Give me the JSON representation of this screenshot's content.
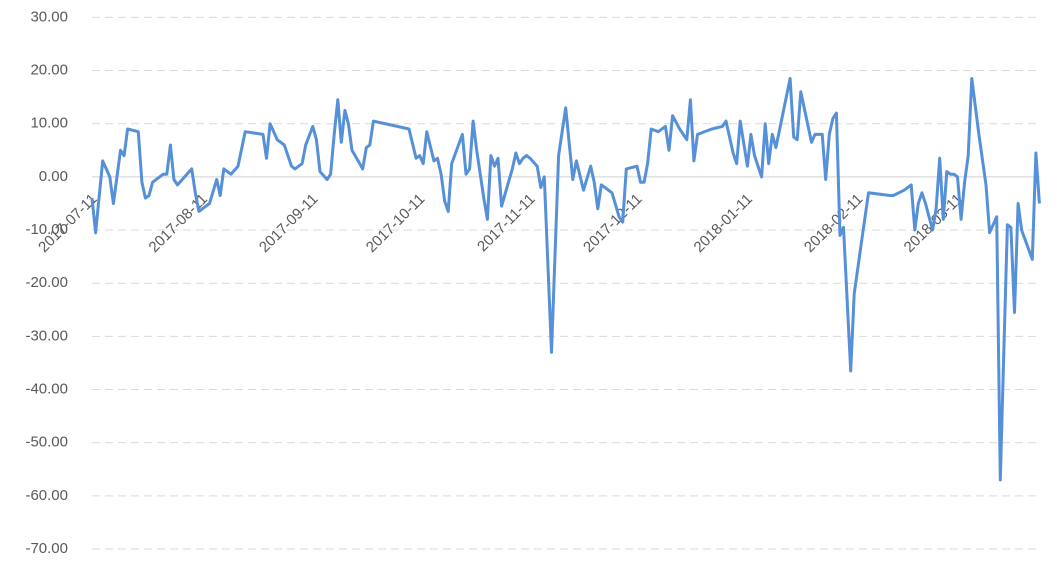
{
  "chart_data": {
    "type": "line",
    "x": [
      "2017-07-11",
      "2017-07-12",
      "2017-07-14",
      "2017-07-16",
      "2017-07-17",
      "2017-07-19",
      "2017-07-20",
      "2017-07-21",
      "2017-07-24",
      "2017-07-25",
      "2017-07-26",
      "2017-07-27",
      "2017-07-28",
      "2017-07-31",
      "2017-08-01",
      "2017-08-02",
      "2017-08-03",
      "2017-08-04",
      "2017-08-08",
      "2017-08-09",
      "2017-08-10",
      "2017-08-13",
      "2017-08-15",
      "2017-08-16",
      "2017-08-17",
      "2017-08-19",
      "2017-08-21",
      "2017-08-23",
      "2017-08-28",
      "2017-08-29",
      "2017-08-30",
      "2017-09-01",
      "2017-09-03",
      "2017-09-05",
      "2017-09-06",
      "2017-09-08",
      "2017-09-09",
      "2017-09-11",
      "2017-09-12",
      "2017-09-13",
      "2017-09-15",
      "2017-09-16",
      "2017-09-17",
      "2017-09-18",
      "2017-09-19",
      "2017-09-20",
      "2017-09-21",
      "2017-09-22",
      "2017-09-25",
      "2017-09-26",
      "2017-09-27",
      "2017-09-28",
      "2017-10-08",
      "2017-10-10",
      "2017-10-11",
      "2017-10-12",
      "2017-10-13",
      "2017-10-15",
      "2017-10-16",
      "2017-10-17",
      "2017-10-18",
      "2017-10-19",
      "2017-10-20",
      "2017-10-23",
      "2017-10-24",
      "2017-10-25",
      "2017-10-26",
      "2017-10-27",
      "2017-10-29",
      "2017-10-30",
      "2017-10-31",
      "2017-11-01",
      "2017-11-02",
      "2017-11-03",
      "2017-11-06",
      "2017-11-07",
      "2017-11-08",
      "2017-11-09",
      "2017-11-10",
      "2017-11-11",
      "2017-11-13",
      "2017-11-14",
      "2017-11-15",
      "2017-11-17",
      "2017-11-19",
      "2017-11-21",
      "2017-11-23",
      "2017-11-24",
      "2017-11-26",
      "2017-11-28",
      "2017-11-29",
      "2017-11-30",
      "2017-12-01",
      "2017-12-02",
      "2017-12-04",
      "2017-12-06",
      "2017-12-07",
      "2017-12-08",
      "2017-12-11",
      "2017-12-12",
      "2017-12-13",
      "2017-12-14",
      "2017-12-15",
      "2017-12-17",
      "2017-12-19",
      "2017-12-20",
      "2017-12-21",
      "2017-12-23",
      "2017-12-25",
      "2017-12-26",
      "2017-12-27",
      "2017-12-28",
      "2018-01-01",
      "2018-01-04",
      "2018-01-05",
      "2018-01-07",
      "2018-01-08",
      "2018-01-09",
      "2018-01-11",
      "2018-01-12",
      "2018-01-13",
      "2018-01-15",
      "2018-01-16",
      "2018-01-17",
      "2018-01-18",
      "2018-01-19",
      "2018-01-21",
      "2018-01-23",
      "2018-01-24",
      "2018-01-25",
      "2018-01-26",
      "2018-01-29",
      "2018-01-30",
      "2018-02-01",
      "2018-02-02",
      "2018-02-03",
      "2018-02-04",
      "2018-02-05",
      "2018-02-06",
      "2018-02-07",
      "2018-02-09",
      "2018-02-10",
      "2018-02-12",
      "2018-02-14",
      "2018-02-20",
      "2018-02-21",
      "2018-02-24",
      "2018-02-26",
      "2018-02-27",
      "2018-02-28",
      "2018-03-01",
      "2018-03-02",
      "2018-03-04",
      "2018-03-05",
      "2018-03-06",
      "2018-03-07",
      "2018-03-08",
      "2018-03-09",
      "2018-03-10",
      "2018-03-11",
      "2018-03-12",
      "2018-03-13",
      "2018-03-14",
      "2018-03-15",
      "2018-03-17",
      "2018-03-19",
      "2018-03-20",
      "2018-03-22",
      "2018-03-23",
      "2018-03-24",
      "2018-03-25",
      "2018-03-26",
      "2018-03-27",
      "2018-03-28",
      "2018-03-29",
      "2018-04-01",
      "2018-04-02",
      "2018-04-03"
    ],
    "series": [
      {
        "color": "#5590d9",
        "values": [
          -4,
          -10.5,
          3,
          0,
          -5,
          5,
          4,
          9,
          8.5,
          -1,
          -4,
          -3.5,
          -1,
          0.5,
          0.5,
          6,
          -0.5,
          -1.5,
          1.5,
          -3,
          -6.5,
          -5,
          -0.5,
          -3.5,
          1.5,
          0.5,
          2,
          8.5,
          8,
          3.5,
          10,
          7,
          6,
          2,
          1.5,
          2.5,
          6,
          9.5,
          7,
          1,
          -0.5,
          0.5,
          8,
          14.5,
          6.5,
          12.5,
          10,
          5,
          1.5,
          5.5,
          6,
          10.5,
          9,
          3.5,
          4,
          2.5,
          8.5,
          3,
          3.5,
          0.5,
          -4.5,
          -6.5,
          2.5,
          8,
          0.5,
          1.5,
          10.5,
          5,
          -4,
          -8,
          4,
          2,
          3.5,
          -5.5,
          1.5,
          4.5,
          2.5,
          3.5,
          4,
          3.5,
          2,
          -2,
          0,
          -33,
          4,
          13,
          -0.5,
          3,
          -2.5,
          2,
          -1,
          -6,
          -1.5,
          -2,
          -3,
          -7.5,
          -8.5,
          1.5,
          2,
          -1,
          -1,
          2.5,
          9,
          8.5,
          9.5,
          5,
          11.5,
          9,
          7,
          14.5,
          3,
          8,
          9,
          9.5,
          10.5,
          4.5,
          2.5,
          10.5,
          2,
          8,
          4,
          0,
          10,
          2.5,
          8,
          5.5,
          12,
          18.5,
          7.5,
          7,
          16,
          6.5,
          8,
          8,
          -0.5,
          8,
          11,
          12,
          -11,
          -9.5,
          -36.5,
          -22,
          -12.5,
          -3,
          -3.5,
          -3.5,
          -2.5,
          -1.5,
          -10,
          -5,
          -3,
          -5,
          -10,
          -6,
          3.5,
          -8,
          1,
          0.5,
          0.5,
          0,
          -8,
          -1,
          4,
          18.5,
          8,
          -1.5,
          -10.5,
          -7.5,
          -57,
          -33,
          -9,
          -9.5,
          -25.5,
          -5,
          -10,
          -15.5,
          4.5,
          -5
        ]
      }
    ],
    "xlim": [
      "2017-07-11",
      "2018-04-04"
    ],
    "xticks": [
      "2017-07-11",
      "2017-08-11",
      "2017-09-11",
      "2017-10-11",
      "2017-11-11",
      "2017-12-11",
      "2018-01-11",
      "2018-02-11",
      "2018-03-11"
    ],
    "ylim": [
      -70,
      30
    ],
    "yticks": [
      {
        "value": 30,
        "label": "30.00"
      },
      {
        "value": 20,
        "label": "20.00"
      },
      {
        "value": 10,
        "label": "10.00"
      },
      {
        "value": 0,
        "label": "0.00"
      },
      {
        "value": -10,
        "label": "-10.00"
      },
      {
        "value": -20,
        "label": "-20.00"
      },
      {
        "value": -30,
        "label": "-30.00"
      },
      {
        "value": -40,
        "label": "-40.00"
      },
      {
        "value": -50,
        "label": "-50.00"
      },
      {
        "value": -60,
        "label": "-60.00"
      },
      {
        "value": -70,
        "label": "-70.00"
      }
    ],
    "grid": true
  }
}
